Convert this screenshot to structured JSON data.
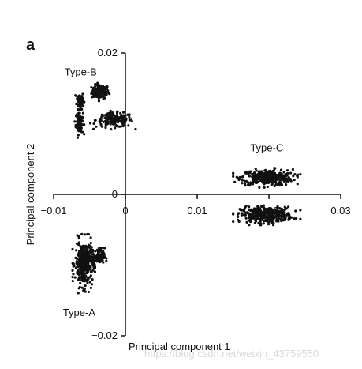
{
  "panel_label": "a",
  "watermark": "https://blog.csdn.net/weixin_43759550",
  "chart_data": {
    "type": "scatter",
    "title": "",
    "xlabel": "Principal component 1",
    "ylabel": "Principal component 2",
    "xlim": [
      -0.01,
      0.03
    ],
    "ylim": [
      -0.02,
      0.02
    ],
    "x_ticks": [
      {
        "value": -0.01,
        "label": "−0.01"
      },
      {
        "value": 0,
        "label": "0"
      },
      {
        "value": 0.01,
        "label": "0.01"
      },
      {
        "value": 0.02,
        "label": "0.02"
      },
      {
        "value": 0.03,
        "label": "0.03"
      }
    ],
    "y_ticks": [
      {
        "value": 0.02,
        "label": "0.02"
      },
      {
        "value": 0,
        "label": "0"
      },
      {
        "value": -0.02,
        "label": "−0.02"
      }
    ],
    "point_color": "#111111",
    "grid": false,
    "legend": "none",
    "clusters": [
      {
        "label": "Type-B",
        "x": -0.0035,
        "y": 0.0145,
        "sx": 0.0006,
        "sy": 0.0005,
        "n": 120
      },
      {
        "label": "Type-B",
        "x": -0.0063,
        "y": 0.0133,
        "sx": 0.00025,
        "sy": 0.0006,
        "n": 70
      },
      {
        "label": "Type-B",
        "x": -0.0064,
        "y": 0.0101,
        "sx": 0.00025,
        "sy": 0.0008,
        "n": 90
      },
      {
        "label": "Type-B",
        "x": -0.0015,
        "y": 0.0105,
        "sx": 0.0013,
        "sy": 0.0005,
        "n": 170
      },
      {
        "label": "Type-C",
        "x": 0.0197,
        "y": 0.0024,
        "sx": 0.0018,
        "sy": 0.00055,
        "n": 340
      },
      {
        "label": "Type-C",
        "x": 0.0197,
        "y": -0.0029,
        "sx": 0.0018,
        "sy": 0.00055,
        "n": 340
      },
      {
        "label": "Type-A",
        "x": -0.0058,
        "y": -0.0098,
        "sx": 0.0006,
        "sy": 0.0016,
        "n": 380
      },
      {
        "label": "Type-A",
        "x": -0.0037,
        "y": -0.0088,
        "sx": 0.0004,
        "sy": 0.0006,
        "n": 90
      }
    ],
    "annotations": [
      {
        "text": "Type-B",
        "x": -0.0085,
        "y": 0.0168
      },
      {
        "text": "Type-C",
        "x": 0.0174,
        "y": 0.0061
      },
      {
        "text": "Type-A",
        "x": -0.0087,
        "y": -0.0172
      }
    ]
  }
}
